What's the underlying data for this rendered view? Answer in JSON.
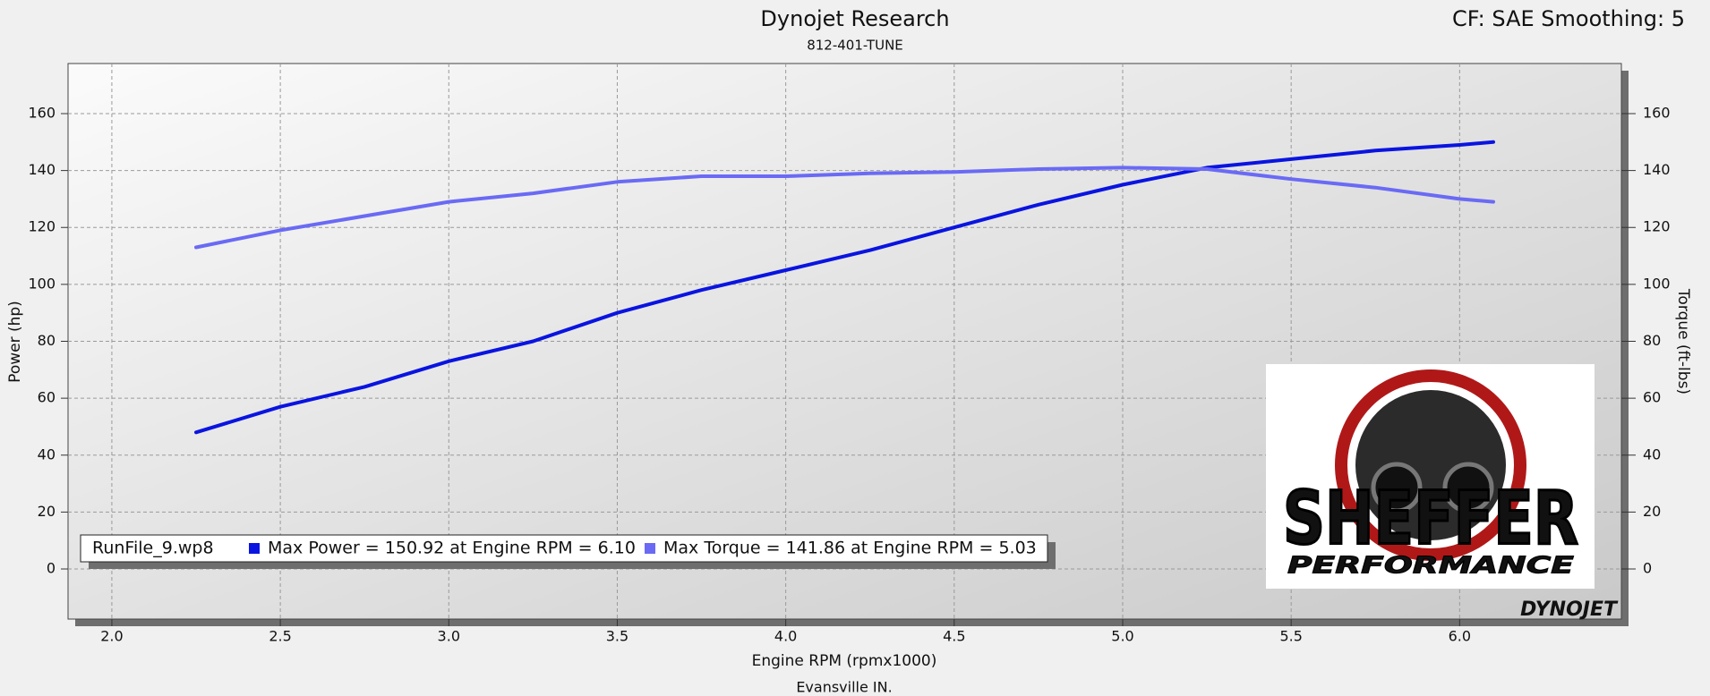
{
  "chart_data": {
    "type": "line",
    "title": "Dynojet Research",
    "subtitle": "812-401-TUNE",
    "corner_note": "CF: SAE Smoothing: 5",
    "x_label": "Engine RPM (rpmx1000)",
    "footer": "Evansville IN.",
    "y_label": "Power (hp)",
    "y2_label": "Torque (ft-lbs)",
    "legend_file": "RunFile_9.wp8",
    "logo_text": "SHEFFER",
    "logo_subtext": "PERFORMANCE",
    "watermark": "DYNOJET",
    "grid": true,
    "xlim": [
      1.87,
      6.48
    ],
    "xticks": [
      {
        "value": 2,
        "label": "2.0"
      },
      2.5,
      {
        "value": 3,
        "label": "3.0"
      },
      3.5,
      {
        "value": 4,
        "label": "4.0"
      },
      4.5,
      {
        "value": 5,
        "label": "5.0"
      },
      5.5,
      {
        "value": 6,
        "label": "6.0"
      }
    ],
    "ylim": [
      -17.6,
      177.6
    ],
    "yticks": [
      0,
      20,
      40,
      60,
      80,
      100,
      120,
      140,
      160
    ],
    "y2lim": [
      -17.6,
      177.6
    ],
    "y2ticks": [
      0,
      20,
      40,
      60,
      80,
      100,
      120,
      140,
      160
    ],
    "x": [
      2.25,
      2.5,
      2.75,
      3.0,
      3.25,
      3.5,
      3.75,
      4.0,
      4.25,
      4.5,
      4.75,
      5.0,
      5.25,
      5.5,
      5.75,
      6.0,
      6.1
    ],
    "series": [
      {
        "name": "Max Power = 150.92 at Engine RPM = 6.10",
        "color": "#0a14e0",
        "values": [
          48,
          57,
          64,
          73,
          80,
          90,
          98,
          105,
          112,
          120,
          128,
          135,
          141,
          144,
          147,
          149,
          150
        ]
      },
      {
        "name": "Max Torque = 141.86 at Engine RPM = 5.03",
        "color": "#6a6af5",
        "axis": "y2",
        "values": [
          113,
          119,
          124,
          129,
          132,
          136,
          138,
          138,
          139,
          139.5,
          140.5,
          141,
          140.5,
          137,
          134,
          130,
          129
        ]
      }
    ]
  }
}
